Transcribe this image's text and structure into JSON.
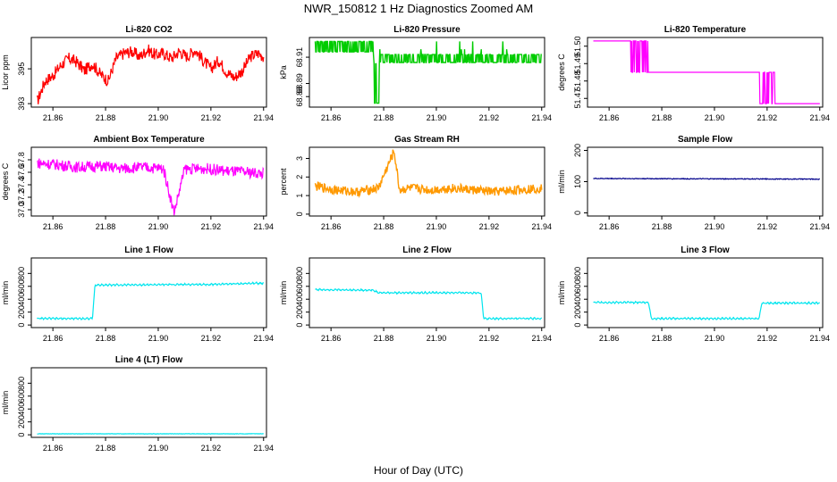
{
  "figure": {
    "title": "NWR_150812  1 Hz Diagnostics Zoomed AM",
    "xlabel": "Hour of Day (UTC)"
  },
  "chart_data": [
    {
      "type": "line",
      "title": "Li-820 CO2",
      "ylabel": "Licor ppm",
      "color": "#ff0000",
      "xlim": [
        21.8518,
        21.9411
      ],
      "ylim": [
        392.8,
        396.8
      ],
      "xticks": [
        "21.86",
        "21.88",
        "21.90",
        "21.92",
        "21.94"
      ],
      "yticks": [
        "393",
        "395"
      ],
      "series_desc": "noisy 1 Hz trace",
      "series": {
        "x": [
          21.854,
          21.857,
          21.86,
          21.863,
          21.866,
          21.869,
          21.872,
          21.875,
          21.878,
          21.881,
          21.884,
          21.887,
          21.89,
          21.893,
          21.896,
          21.899,
          21.902,
          21.905,
          21.908,
          21.911,
          21.914,
          21.917,
          21.92,
          21.923,
          21.926,
          21.929,
          21.932,
          21.935,
          21.938,
          21.94
        ],
        "y": [
          393.1,
          394.3,
          394.6,
          395.2,
          395.6,
          395.4,
          394.9,
          395.3,
          394.7,
          394.3,
          395.6,
          395.9,
          396.0,
          395.7,
          396.1,
          395.8,
          395.9,
          395.6,
          396.0,
          395.7,
          396.1,
          395.5,
          395.0,
          395.5,
          394.8,
          394.5,
          394.9,
          395.7,
          395.9,
          395.7
        ]
      }
    },
    {
      "type": "line",
      "title": "Li-820 Pressure",
      "ylabel": "kPa",
      "color": "#00cc00",
      "xlim": [
        21.8518,
        21.9411
      ],
      "ylim": [
        68.872,
        68.925
      ],
      "xticks": [
        "21.86",
        "21.88",
        "21.90",
        "21.92",
        "21.94"
      ],
      "yticks": [
        "68.88",
        "68.89",
        "68.91"
      ],
      "series_desc": "stepped signal alternating between two digitization levels",
      "series": {
        "x": [
          21.854,
          21.86,
          21.866,
          21.872,
          21.876,
          21.877,
          21.878,
          21.88,
          21.886,
          21.892,
          21.898,
          21.904,
          21.91,
          21.916,
          21.922,
          21.928,
          21.934,
          21.94
        ],
        "y": [
          68.922,
          68.922,
          68.922,
          68.922,
          68.912,
          68.875,
          68.905,
          68.912,
          68.906,
          68.912,
          68.906,
          68.912,
          68.906,
          68.912,
          68.922,
          68.906,
          68.912,
          68.906
        ]
      }
    },
    {
      "type": "line",
      "title": "Li-820 Temperature",
      "ylabel": "degrees C",
      "color": "#ff00ff",
      "xlim": [
        21.8518,
        21.9411
      ],
      "ylim": [
        51.465,
        51.505
      ],
      "xticks": [
        "21.86",
        "21.88",
        "21.90",
        "21.92",
        "21.94"
      ],
      "yticks": [
        "51.47",
        "51.48",
        "51.49",
        "51.50"
      ],
      "series_desc": "three-level step signal",
      "series": {
        "x": [
          21.854,
          21.868,
          21.8685,
          21.874,
          21.875,
          21.917,
          21.918,
          21.922,
          21.923,
          21.94
        ],
        "y": [
          51.503,
          51.503,
          51.485,
          51.485,
          51.485,
          51.485,
          51.467,
          51.467,
          51.467,
          51.467
        ]
      }
    },
    {
      "type": "line",
      "title": "Ambient Box Temperature",
      "ylabel": "degrees C",
      "color": "#ff00ff",
      "xlim": [
        21.8518,
        21.9411
      ],
      "ylim": [
        36.9,
        38.0
      ],
      "xticks": [
        "21.86",
        "21.88",
        "21.90",
        "21.92",
        "21.94"
      ],
      "yticks": [
        "37.0",
        "37.2",
        "37.4",
        "37.6",
        "37.8"
      ],
      "series_desc": "noisy trace around 37.7 C",
      "series": {
        "x": [
          21.854,
          21.862,
          21.87,
          21.878,
          21.886,
          21.894,
          21.902,
          21.906,
          21.91,
          21.918,
          21.926,
          21.934,
          21.94
        ],
        "y": [
          37.75,
          37.72,
          37.68,
          37.7,
          37.66,
          37.68,
          37.66,
          36.95,
          37.65,
          37.66,
          37.62,
          37.6,
          37.58
        ]
      }
    },
    {
      "type": "line",
      "title": "Gas Stream RH",
      "ylabel": "percent",
      "color": "#ff9900",
      "xlim": [
        21.8518,
        21.9411
      ],
      "ylim": [
        -0.1,
        3.6
      ],
      "xticks": [
        "21.86",
        "21.88",
        "21.90",
        "21.92",
        "21.94"
      ],
      "yticks": [
        "0",
        "1",
        "2",
        "3"
      ],
      "series_desc": "noisy trace near 1.3 percent",
      "series": {
        "x": [
          21.854,
          21.862,
          21.87,
          21.878,
          21.884,
          21.886,
          21.89,
          21.898,
          21.906,
          21.914,
          21.922,
          21.93,
          21.94
        ],
        "y": [
          1.5,
          1.3,
          1.2,
          1.4,
          3.4,
          1.3,
          1.4,
          1.3,
          1.4,
          1.3,
          1.2,
          1.3,
          1.4
        ]
      }
    },
    {
      "type": "line",
      "title": "Sample Flow",
      "ylabel": "ml/min",
      "color": "#00008b",
      "xlim": [
        21.8518,
        21.9411
      ],
      "ylim": [
        -10,
        210
      ],
      "xticks": [
        "21.86",
        "21.88",
        "21.90",
        "21.92",
        "21.94"
      ],
      "yticks": [
        "0",
        "100",
        "200"
      ],
      "series": {
        "x": [
          21.854,
          21.94
        ],
        "y": [
          110,
          108
        ]
      }
    },
    {
      "type": "line",
      "title": "Line 1 Flow",
      "ylabel": "ml/min",
      "color": "#00e5ee",
      "xlim": [
        21.8518,
        21.9411
      ],
      "ylim": [
        -40,
        1040
      ],
      "xticks": [
        "21.86",
        "21.88",
        "21.90",
        "21.92",
        "21.94"
      ],
      "yticks": [
        "0",
        "200",
        "400",
        "600",
        "800"
      ],
      "series": {
        "x": [
          21.854,
          21.875,
          21.876,
          21.92,
          21.94
        ],
        "y": [
          100,
          100,
          620,
          630,
          650
        ]
      }
    },
    {
      "type": "line",
      "title": "Line 2 Flow",
      "ylabel": "ml/min",
      "color": "#00e5ee",
      "xlim": [
        21.8518,
        21.9411
      ],
      "ylim": [
        -40,
        1040
      ],
      "xticks": [
        "21.86",
        "21.88",
        "21.90",
        "21.92",
        "21.94"
      ],
      "yticks": [
        "0",
        "200",
        "400",
        "600",
        "800"
      ],
      "series": {
        "x": [
          21.854,
          21.876,
          21.878,
          21.917,
          21.918,
          21.94
        ],
        "y": [
          550,
          540,
          500,
          500,
          100,
          100
        ]
      }
    },
    {
      "type": "line",
      "title": "Line 3 Flow",
      "ylabel": "ml/min",
      "color": "#00e5ee",
      "xlim": [
        21.8518,
        21.9411
      ],
      "ylim": [
        -40,
        1040
      ],
      "xticks": [
        "21.86",
        "21.88",
        "21.90",
        "21.92",
        "21.94"
      ],
      "yticks": [
        "0",
        "200",
        "400",
        "600",
        "800"
      ],
      "series": {
        "x": [
          21.854,
          21.875,
          21.876,
          21.917,
          21.918,
          21.94
        ],
        "y": [
          350,
          350,
          100,
          100,
          340,
          340
        ]
      }
    },
    {
      "type": "line",
      "title": "Line 4 (LT) Flow",
      "ylabel": "ml/min",
      "color": "#00e5ee",
      "xlim": [
        21.8518,
        21.9411
      ],
      "ylim": [
        -40,
        1040
      ],
      "xticks": [
        "21.86",
        "21.88",
        "21.90",
        "21.92",
        "21.94"
      ],
      "yticks": [
        "0",
        "200",
        "400",
        "600",
        "800"
      ],
      "series": {
        "x": [
          21.854,
          21.94
        ],
        "y": [
          15,
          15
        ]
      }
    }
  ]
}
